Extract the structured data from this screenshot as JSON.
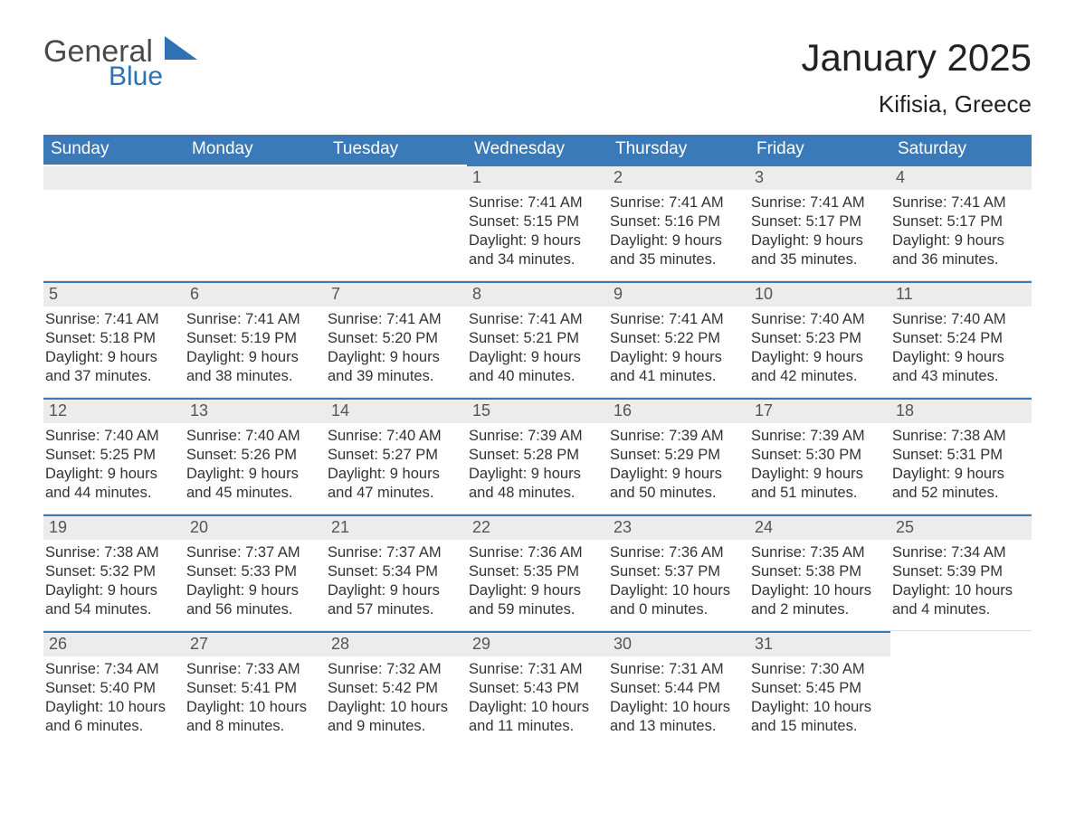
{
  "logo": {
    "general": "General",
    "blue": "Blue"
  },
  "title": "January 2025",
  "location": "Kifisia, Greece",
  "colors": {
    "header_bg": "#3a7ab8",
    "header_text": "#ffffff",
    "daynum_bg": "#ececec",
    "daynum_text": "#555555",
    "body_text": "#333333",
    "logo_general": "#4a4a4a",
    "logo_blue": "#2f71b3",
    "cell_border_top": "#3a7ab8",
    "background": "#ffffff"
  },
  "typography": {
    "title_fontsize": 42,
    "location_fontsize": 26,
    "weekday_fontsize": 19,
    "daynum_fontsize": 18,
    "content_fontsize": 16.5,
    "font_family": "Arial"
  },
  "weekdays": [
    "Sunday",
    "Monday",
    "Tuesday",
    "Wednesday",
    "Thursday",
    "Friday",
    "Saturday"
  ],
  "weeks": [
    [
      null,
      null,
      null,
      {
        "n": "1",
        "sunrise": "Sunrise: 7:41 AM",
        "sunset": "Sunset: 5:15 PM",
        "d1": "Daylight: 9 hours",
        "d2": "and 34 minutes."
      },
      {
        "n": "2",
        "sunrise": "Sunrise: 7:41 AM",
        "sunset": "Sunset: 5:16 PM",
        "d1": "Daylight: 9 hours",
        "d2": "and 35 minutes."
      },
      {
        "n": "3",
        "sunrise": "Sunrise: 7:41 AM",
        "sunset": "Sunset: 5:17 PM",
        "d1": "Daylight: 9 hours",
        "d2": "and 35 minutes."
      },
      {
        "n": "4",
        "sunrise": "Sunrise: 7:41 AM",
        "sunset": "Sunset: 5:17 PM",
        "d1": "Daylight: 9 hours",
        "d2": "and 36 minutes."
      }
    ],
    [
      {
        "n": "5",
        "sunrise": "Sunrise: 7:41 AM",
        "sunset": "Sunset: 5:18 PM",
        "d1": "Daylight: 9 hours",
        "d2": "and 37 minutes."
      },
      {
        "n": "6",
        "sunrise": "Sunrise: 7:41 AM",
        "sunset": "Sunset: 5:19 PM",
        "d1": "Daylight: 9 hours",
        "d2": "and 38 minutes."
      },
      {
        "n": "7",
        "sunrise": "Sunrise: 7:41 AM",
        "sunset": "Sunset: 5:20 PM",
        "d1": "Daylight: 9 hours",
        "d2": "and 39 minutes."
      },
      {
        "n": "8",
        "sunrise": "Sunrise: 7:41 AM",
        "sunset": "Sunset: 5:21 PM",
        "d1": "Daylight: 9 hours",
        "d2": "and 40 minutes."
      },
      {
        "n": "9",
        "sunrise": "Sunrise: 7:41 AM",
        "sunset": "Sunset: 5:22 PM",
        "d1": "Daylight: 9 hours",
        "d2": "and 41 minutes."
      },
      {
        "n": "10",
        "sunrise": "Sunrise: 7:40 AM",
        "sunset": "Sunset: 5:23 PM",
        "d1": "Daylight: 9 hours",
        "d2": "and 42 minutes."
      },
      {
        "n": "11",
        "sunrise": "Sunrise: 7:40 AM",
        "sunset": "Sunset: 5:24 PM",
        "d1": "Daylight: 9 hours",
        "d2": "and 43 minutes."
      }
    ],
    [
      {
        "n": "12",
        "sunrise": "Sunrise: 7:40 AM",
        "sunset": "Sunset: 5:25 PM",
        "d1": "Daylight: 9 hours",
        "d2": "and 44 minutes."
      },
      {
        "n": "13",
        "sunrise": "Sunrise: 7:40 AM",
        "sunset": "Sunset: 5:26 PM",
        "d1": "Daylight: 9 hours",
        "d2": "and 45 minutes."
      },
      {
        "n": "14",
        "sunrise": "Sunrise: 7:40 AM",
        "sunset": "Sunset: 5:27 PM",
        "d1": "Daylight: 9 hours",
        "d2": "and 47 minutes."
      },
      {
        "n": "15",
        "sunrise": "Sunrise: 7:39 AM",
        "sunset": "Sunset: 5:28 PM",
        "d1": "Daylight: 9 hours",
        "d2": "and 48 minutes."
      },
      {
        "n": "16",
        "sunrise": "Sunrise: 7:39 AM",
        "sunset": "Sunset: 5:29 PM",
        "d1": "Daylight: 9 hours",
        "d2": "and 50 minutes."
      },
      {
        "n": "17",
        "sunrise": "Sunrise: 7:39 AM",
        "sunset": "Sunset: 5:30 PM",
        "d1": "Daylight: 9 hours",
        "d2": "and 51 minutes."
      },
      {
        "n": "18",
        "sunrise": "Sunrise: 7:38 AM",
        "sunset": "Sunset: 5:31 PM",
        "d1": "Daylight: 9 hours",
        "d2": "and 52 minutes."
      }
    ],
    [
      {
        "n": "19",
        "sunrise": "Sunrise: 7:38 AM",
        "sunset": "Sunset: 5:32 PM",
        "d1": "Daylight: 9 hours",
        "d2": "and 54 minutes."
      },
      {
        "n": "20",
        "sunrise": "Sunrise: 7:37 AM",
        "sunset": "Sunset: 5:33 PM",
        "d1": "Daylight: 9 hours",
        "d2": "and 56 minutes."
      },
      {
        "n": "21",
        "sunrise": "Sunrise: 7:37 AM",
        "sunset": "Sunset: 5:34 PM",
        "d1": "Daylight: 9 hours",
        "d2": "and 57 minutes."
      },
      {
        "n": "22",
        "sunrise": "Sunrise: 7:36 AM",
        "sunset": "Sunset: 5:35 PM",
        "d1": "Daylight: 9 hours",
        "d2": "and 59 minutes."
      },
      {
        "n": "23",
        "sunrise": "Sunrise: 7:36 AM",
        "sunset": "Sunset: 5:37 PM",
        "d1": "Daylight: 10 hours",
        "d2": "and 0 minutes."
      },
      {
        "n": "24",
        "sunrise": "Sunrise: 7:35 AM",
        "sunset": "Sunset: 5:38 PM",
        "d1": "Daylight: 10 hours",
        "d2": "and 2 minutes."
      },
      {
        "n": "25",
        "sunrise": "Sunrise: 7:34 AM",
        "sunset": "Sunset: 5:39 PM",
        "d1": "Daylight: 10 hours",
        "d2": "and 4 minutes."
      }
    ],
    [
      {
        "n": "26",
        "sunrise": "Sunrise: 7:34 AM",
        "sunset": "Sunset: 5:40 PM",
        "d1": "Daylight: 10 hours",
        "d2": "and 6 minutes."
      },
      {
        "n": "27",
        "sunrise": "Sunrise: 7:33 AM",
        "sunset": "Sunset: 5:41 PM",
        "d1": "Daylight: 10 hours",
        "d2": "and 8 minutes."
      },
      {
        "n": "28",
        "sunrise": "Sunrise: 7:32 AM",
        "sunset": "Sunset: 5:42 PM",
        "d1": "Daylight: 10 hours",
        "d2": "and 9 minutes."
      },
      {
        "n": "29",
        "sunrise": "Sunrise: 7:31 AM",
        "sunset": "Sunset: 5:43 PM",
        "d1": "Daylight: 10 hours",
        "d2": "and 11 minutes."
      },
      {
        "n": "30",
        "sunrise": "Sunrise: 7:31 AM",
        "sunset": "Sunset: 5:44 PM",
        "d1": "Daylight: 10 hours",
        "d2": "and 13 minutes."
      },
      {
        "n": "31",
        "sunrise": "Sunrise: 7:30 AM",
        "sunset": "Sunset: 5:45 PM",
        "d1": "Daylight: 10 hours",
        "d2": "and 15 minutes."
      },
      null
    ]
  ]
}
